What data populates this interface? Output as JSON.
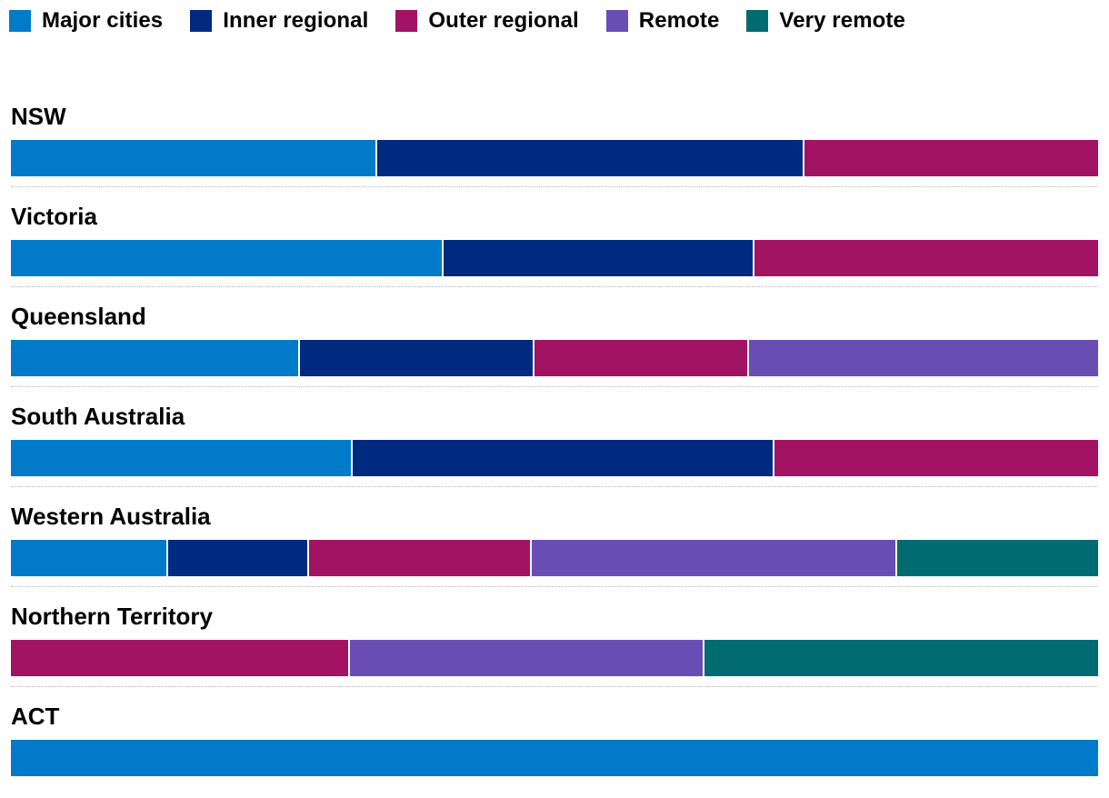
{
  "chart_data": {
    "type": "bar",
    "orientation": "horizontal",
    "stacked": true,
    "normalized": true,
    "title": "",
    "xlabel": "",
    "ylabel": "",
    "legend_position": "top-left",
    "grid": false,
    "categories": [
      "NSW",
      "Victoria",
      "Queensland",
      "South Australia",
      "Western Australia",
      "Northern Territory",
      "ACT"
    ],
    "series": [
      {
        "name": "Major cities",
        "color": "#007ac9",
        "values": [
          33.7,
          39.8,
          26.6,
          31.4,
          14.5,
          0,
          100
        ]
      },
      {
        "name": "Inner regional",
        "color": "#002a7f",
        "values": [
          39.3,
          28.6,
          21.6,
          38.8,
          12.9,
          0,
          0
        ]
      },
      {
        "name": "Outer regional",
        "color": "#a31363",
        "values": [
          27.0,
          31.6,
          19.7,
          29.8,
          20.5,
          31.2,
          0
        ]
      },
      {
        "name": "Remote",
        "color": "#6a4db4",
        "values": [
          0,
          0,
          32.1,
          0,
          33.6,
          32.6,
          0
        ]
      },
      {
        "name": "Very remote",
        "color": "#006b70",
        "values": [
          0,
          0,
          0,
          0,
          18.5,
          36.2,
          0
        ]
      }
    ]
  }
}
